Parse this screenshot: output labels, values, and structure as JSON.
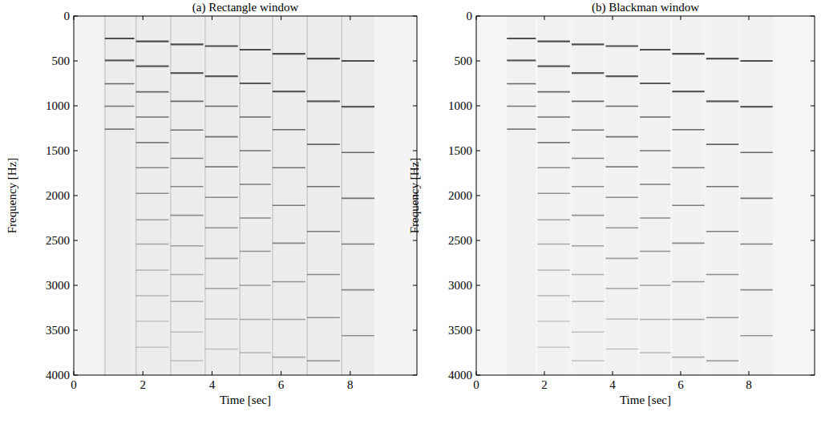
{
  "chart_data": [
    {
      "type": "spectrogram",
      "title": "(a) Rectangle window",
      "x_label": "Time [sec]",
      "y_label": "Frequency [Hz]",
      "xlim": [
        0,
        9.93
      ],
      "xticks": [
        0,
        2,
        4,
        6,
        8
      ],
      "ylim": [
        0,
        4000
      ],
      "yticks": [
        0,
        500,
        1000,
        1500,
        2000,
        2500,
        3000,
        3500,
        4000
      ],
      "notes": [
        {
          "start": 0.9,
          "end": 1.75,
          "harmonics": [
            250,
            495,
            755,
            1005,
            1260
          ]
        },
        {
          "start": 1.8,
          "end": 2.75,
          "harmonics": [
            282,
            560,
            845,
            1125,
            1410,
            1690,
            1975,
            2270,
            2540,
            2830,
            3115,
            3400,
            3690
          ]
        },
        {
          "start": 2.8,
          "end": 3.75,
          "harmonics": [
            315,
            635,
            950,
            1270,
            1585,
            1900,
            2220,
            2560,
            2880,
            3180,
            3520,
            3840
          ]
        },
        {
          "start": 3.8,
          "end": 4.75,
          "harmonics": [
            335,
            670,
            1005,
            1345,
            1680,
            2020,
            2360,
            2700,
            3035,
            3375,
            3710
          ]
        },
        {
          "start": 4.8,
          "end": 5.7,
          "harmonics": [
            375,
            750,
            1125,
            1500,
            1875,
            2250,
            2620,
            3000,
            3380,
            3750
          ]
        },
        {
          "start": 5.75,
          "end": 6.7,
          "harmonics": [
            420,
            840,
            1265,
            1690,
            2110,
            2530,
            2960,
            3380,
            3800
          ]
        },
        {
          "start": 6.75,
          "end": 7.7,
          "harmonics": [
            475,
            950,
            1430,
            1900,
            2400,
            2880,
            3360,
            3840
          ]
        },
        {
          "start": 7.75,
          "end": 8.7,
          "harmonics": [
            500,
            1010,
            1520,
            2030,
            2540,
            3050,
            3560
          ]
        }
      ]
    },
    {
      "type": "spectrogram",
      "title": "(b) Blackman window",
      "x_label": "Time [sec]",
      "y_label": "Frequency [Hz]",
      "xlim": [
        0,
        9.93
      ],
      "xticks": [
        0,
        2,
        4,
        6,
        8
      ],
      "ylim": [
        0,
        4000
      ],
      "yticks": [
        0,
        500,
        1000,
        1500,
        2000,
        2500,
        3000,
        3500,
        4000
      ],
      "notes": [
        {
          "start": 0.9,
          "end": 1.75,
          "harmonics": [
            250,
            495,
            755,
            1005,
            1260
          ]
        },
        {
          "start": 1.8,
          "end": 2.75,
          "harmonics": [
            282,
            560,
            845,
            1125,
            1410,
            1690,
            1975,
            2270,
            2540,
            2830,
            3115,
            3400,
            3690
          ]
        },
        {
          "start": 2.8,
          "end": 3.75,
          "harmonics": [
            315,
            635,
            950,
            1270,
            1585,
            1900,
            2220,
            2560,
            2880,
            3180,
            3520,
            3840
          ]
        },
        {
          "start": 3.8,
          "end": 4.75,
          "harmonics": [
            335,
            670,
            1005,
            1345,
            1680,
            2020,
            2360,
            2700,
            3035,
            3375,
            3710
          ]
        },
        {
          "start": 4.8,
          "end": 5.7,
          "harmonics": [
            375,
            750,
            1125,
            1500,
            1875,
            2250,
            2620,
            3000,
            3380,
            3750
          ]
        },
        {
          "start": 5.75,
          "end": 6.7,
          "harmonics": [
            420,
            840,
            1265,
            1690,
            2110,
            2530,
            2960,
            3380,
            3800
          ]
        },
        {
          "start": 6.75,
          "end": 7.7,
          "harmonics": [
            475,
            950,
            1430,
            1900,
            2400,
            2880,
            3360,
            3840
          ]
        },
        {
          "start": 7.75,
          "end": 8.7,
          "harmonics": [
            500,
            1010,
            1520,
            2030,
            2540,
            3050,
            3560
          ]
        }
      ]
    }
  ]
}
